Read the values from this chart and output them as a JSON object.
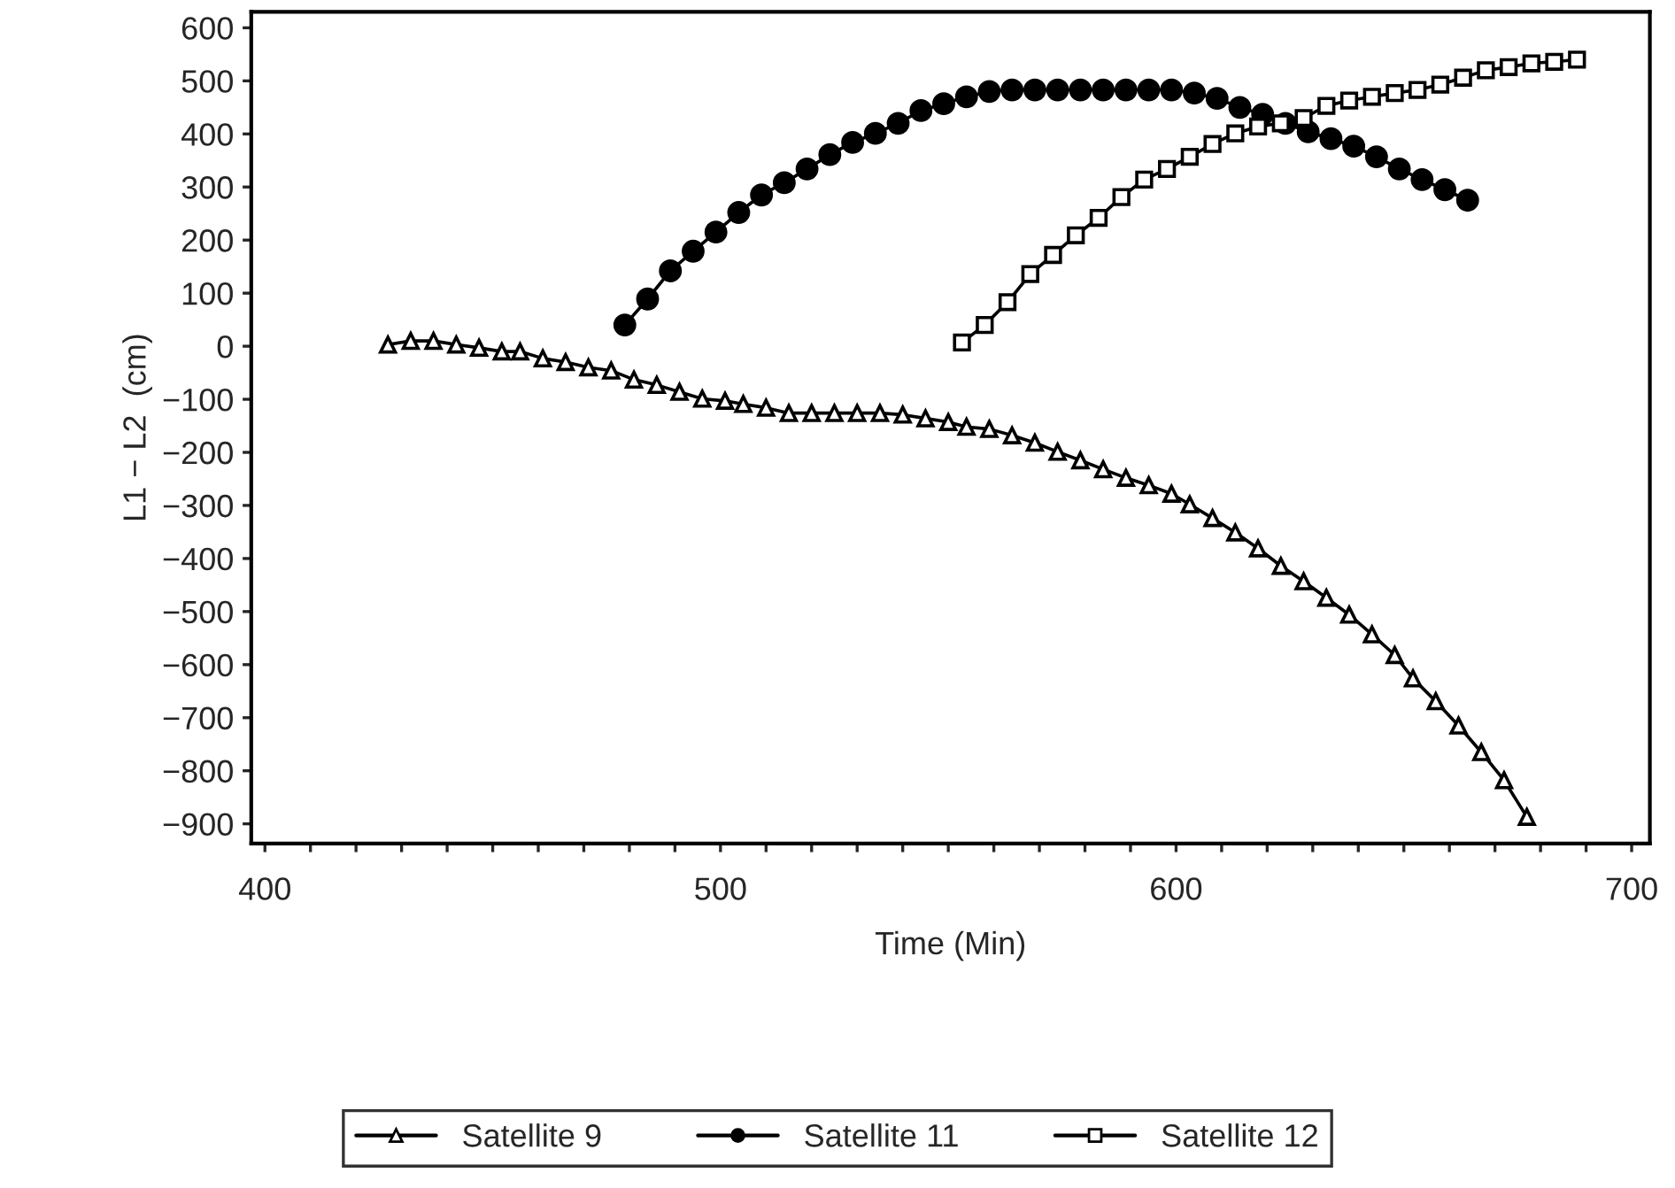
{
  "chart_data": {
    "type": "line",
    "xlabel": "Time (Min)",
    "ylabel": "L1 − L2  (cm)",
    "xlim": [
      397,
      704
    ],
    "ylim": [
      -937,
      630
    ],
    "xticks": [
      400,
      {
        "value": 410,
        "label": null
      },
      {
        "value": 420,
        "label": null
      },
      {
        "value": 430,
        "label": null
      },
      {
        "value": 440,
        "label": null
      },
      {
        "value": 450,
        "label": null
      },
      {
        "value": 460,
        "label": null
      },
      {
        "value": 470,
        "label": null
      },
      {
        "value": 480,
        "label": null
      },
      {
        "value": 490,
        "label": null
      },
      500,
      {
        "value": 510,
        "label": null
      },
      {
        "value": 520,
        "label": null
      },
      {
        "value": 530,
        "label": null
      },
      {
        "value": 540,
        "label": null
      },
      {
        "value": 550,
        "label": null
      },
      {
        "value": 560,
        "label": null
      },
      {
        "value": 570,
        "label": null
      },
      {
        "value": 580,
        "label": null
      },
      {
        "value": 590,
        "label": null
      },
      600,
      {
        "value": 610,
        "label": null
      },
      {
        "value": 620,
        "label": null
      },
      {
        "value": 630,
        "label": null
      },
      {
        "value": 640,
        "label": null
      },
      {
        "value": 650,
        "label": null
      },
      {
        "value": 660,
        "label": null
      },
      {
        "value": 670,
        "label": null
      },
      {
        "value": 680,
        "label": null
      },
      {
        "value": 690,
        "label": null
      },
      700
    ],
    "yticks": [
      {
        "value": 600,
        "label": "600"
      },
      {
        "value": 500,
        "label": "500"
      },
      {
        "value": 400,
        "label": "400"
      },
      {
        "value": 300,
        "label": "300"
      },
      {
        "value": 200,
        "label": "200"
      },
      {
        "value": 100,
        "label": "100"
      },
      {
        "value": 0,
        "label": "0"
      },
      {
        "value": -100,
        "label": "−100"
      },
      {
        "value": -200,
        "label": "−200"
      },
      {
        "value": -300,
        "label": "−300"
      },
      {
        "value": -400,
        "label": "−400"
      },
      {
        "value": -500,
        "label": "−500"
      },
      {
        "value": -600,
        "label": "−600"
      },
      {
        "value": -700,
        "label": "−700"
      },
      {
        "value": -800,
        "label": "−800"
      },
      {
        "value": -900,
        "label": "−900"
      }
    ],
    "grid": false,
    "legend": "bottom",
    "line_style": "solid",
    "series": [
      {
        "name": "Satellite 9",
        "color": "#000000",
        "marker": "triangle",
        "x": [
          427,
          432,
          437,
          442,
          447,
          452,
          456,
          461,
          466,
          471,
          476,
          481,
          486,
          491,
          496,
          501,
          505,
          510,
          515,
          520,
          525,
          530,
          535,
          540,
          545,
          550,
          554,
          559,
          564,
          569,
          574,
          579,
          584,
          589,
          594,
          599,
          603,
          608,
          613,
          618,
          623,
          628,
          633,
          638,
          643,
          648,
          652,
          657,
          662,
          667,
          672,
          677
        ],
        "values": [
          3,
          10,
          10,
          3,
          -3,
          -10,
          -10,
          -23,
          -30,
          -40,
          -46,
          -63,
          -73,
          -86,
          -99,
          -103,
          -109,
          -116,
          -126,
          -126,
          -126,
          -126,
          -126,
          -129,
          -136,
          -143,
          -152,
          -156,
          -168,
          -182,
          -199,
          -215,
          -232,
          -248,
          -262,
          -278,
          -298,
          -324,
          -351,
          -381,
          -414,
          -443,
          -474,
          -506,
          -543,
          -582,
          -626,
          -669,
          -715,
          -765,
          -818,
          -887
        ]
      },
      {
        "name": "Satellite 11",
        "color": "#000000",
        "marker": "circle",
        "x": [
          479,
          484,
          489,
          494,
          499,
          504,
          509,
          514,
          519,
          524,
          529,
          534,
          539,
          544,
          549,
          554,
          559,
          564,
          569,
          574,
          579,
          584,
          589,
          594,
          599,
          604,
          609,
          614,
          619,
          624,
          629,
          634,
          639,
          644,
          649,
          654,
          659,
          664
        ],
        "values": [
          40,
          89,
          142,
          179,
          215,
          252,
          285,
          308,
          334,
          361,
          384,
          401,
          420,
          444,
          457,
          470,
          480,
          483,
          483,
          483,
          483,
          483,
          483,
          483,
          483,
          477,
          467,
          450,
          437,
          420,
          404,
          391,
          377,
          357,
          334,
          314,
          295,
          275
        ]
      },
      {
        "name": "Satellite 12",
        "color": "#000000",
        "marker": "square",
        "x": [
          553,
          558,
          563,
          568,
          573,
          578,
          583,
          588,
          593,
          598,
          603,
          608,
          613,
          618,
          623,
          628,
          633,
          638,
          643,
          648,
          653,
          658,
          663,
          668,
          673,
          678,
          683,
          688
        ],
        "values": [
          7,
          40,
          83,
          136,
          172,
          209,
          242,
          281,
          314,
          334,
          357,
          381,
          401,
          414,
          420,
          430,
          453,
          463,
          470,
          477,
          483,
          493,
          506,
          520,
          526,
          533,
          536,
          540
        ]
      }
    ]
  }
}
